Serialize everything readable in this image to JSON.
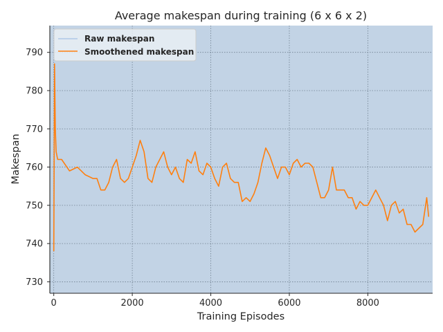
{
  "chart_data": {
    "type": "line",
    "title": "Average makespan during training (6 x 6 x 2)",
    "xlabel": "Training Episodes",
    "ylabel": "Makespan",
    "xlim": [
      -100,
      9650
    ],
    "ylim": [
      727,
      797
    ],
    "xticks": [
      0,
      2000,
      4000,
      6000,
      8000
    ],
    "xtick_labels": [
      "0",
      "2000",
      "4000",
      "6000",
      "8000"
    ],
    "yticks": [
      730,
      740,
      750,
      760,
      770,
      780,
      790
    ],
    "ytick_labels": [
      "730",
      "740",
      "750",
      "760",
      "770",
      "780",
      "790"
    ],
    "grid": true,
    "legend_position": "top-left",
    "background_color": "#c2d3e5",
    "series": [
      {
        "name": "Raw makespan",
        "color": "#aec7e8",
        "x": [
          0,
          20,
          40,
          60,
          100,
          200,
          400,
          600,
          800,
          1000,
          1100,
          1200,
          1300,
          1400,
          1500,
          1600,
          1700,
          1800,
          1900,
          2000,
          2100,
          2200,
          2300,
          2400,
          2500,
          2600,
          2700,
          2800,
          2900,
          3000,
          3100,
          3200,
          3300,
          3400,
          3500,
          3600,
          3700,
          3800,
          3900,
          4000,
          4100,
          4200,
          4300,
          4400,
          4500,
          4600,
          4700,
          4800,
          4900,
          5000,
          5100,
          5200,
          5300,
          5400,
          5500,
          5600,
          5700,
          5800,
          5900,
          6000,
          6100,
          6200,
          6300,
          6400,
          6500,
          6600,
          6700,
          6800,
          6900,
          7000,
          7100,
          7200,
          7300,
          7400,
          7500,
          7600,
          7700,
          7800,
          7900,
          8000,
          8100,
          8200,
          8300,
          8400,
          8500,
          8600,
          8700,
          8800,
          8900,
          9000,
          9100,
          9200,
          9300,
          9400,
          9500,
          9550
        ],
        "y": [
          738,
          787,
          770,
          764,
          762,
          762,
          759,
          760,
          758,
          757,
          757,
          754,
          754,
          756,
          760,
          762,
          757,
          756,
          757,
          760,
          763,
          767,
          764,
          757,
          756,
          760,
          762,
          764,
          760,
          758,
          760,
          757,
          756,
          762,
          761,
          764,
          759,
          758,
          761,
          760,
          757,
          755,
          760,
          761,
          757,
          756,
          756,
          751,
          752,
          751,
          753,
          756,
          761,
          765,
          763,
          760,
          757,
          760,
          760,
          758,
          761,
          762,
          760,
          761,
          761,
          760,
          756,
          752,
          752,
          754,
          760,
          754,
          754,
          754,
          752,
          752,
          749,
          751,
          750,
          750,
          752,
          754,
          752,
          750,
          746,
          750,
          751,
          748,
          749,
          745,
          745,
          743,
          744,
          745,
          752,
          747
        ]
      },
      {
        "name": "Smoothened makespan",
        "color": "#ff7f0e",
        "x": [
          0,
          20,
          40,
          60,
          100,
          200,
          400,
          600,
          800,
          1000,
          1100,
          1200,
          1300,
          1400,
          1500,
          1600,
          1700,
          1800,
          1900,
          2000,
          2100,
          2200,
          2300,
          2400,
          2500,
          2600,
          2700,
          2800,
          2900,
          3000,
          3100,
          3200,
          3300,
          3400,
          3500,
          3600,
          3700,
          3800,
          3900,
          4000,
          4100,
          4200,
          4300,
          4400,
          4500,
          4600,
          4700,
          4800,
          4900,
          5000,
          5100,
          5200,
          5300,
          5400,
          5500,
          5600,
          5700,
          5800,
          5900,
          6000,
          6100,
          6200,
          6300,
          6400,
          6500,
          6600,
          6700,
          6800,
          6900,
          7000,
          7100,
          7200,
          7300,
          7400,
          7500,
          7600,
          7700,
          7800,
          7900,
          8000,
          8100,
          8200,
          8300,
          8400,
          8500,
          8600,
          8700,
          8800,
          8900,
          9000,
          9100,
          9200,
          9300,
          9400,
          9500,
          9550
        ],
        "y": [
          738,
          787,
          770,
          764,
          762,
          762,
          759,
          760,
          758,
          757,
          757,
          754,
          754,
          756,
          760,
          762,
          757,
          756,
          757,
          760,
          763,
          767,
          764,
          757,
          756,
          760,
          762,
          764,
          760,
          758,
          760,
          757,
          756,
          762,
          761,
          764,
          759,
          758,
          761,
          760,
          757,
          755,
          760,
          761,
          757,
          756,
          756,
          751,
          752,
          751,
          753,
          756,
          761,
          765,
          763,
          760,
          757,
          760,
          760,
          758,
          761,
          762,
          760,
          761,
          761,
          760,
          756,
          752,
          752,
          754,
          760,
          754,
          754,
          754,
          752,
          752,
          749,
          751,
          750,
          750,
          752,
          754,
          752,
          750,
          746,
          750,
          751,
          748,
          749,
          745,
          745,
          743,
          744,
          745,
          752,
          747
        ]
      }
    ]
  }
}
